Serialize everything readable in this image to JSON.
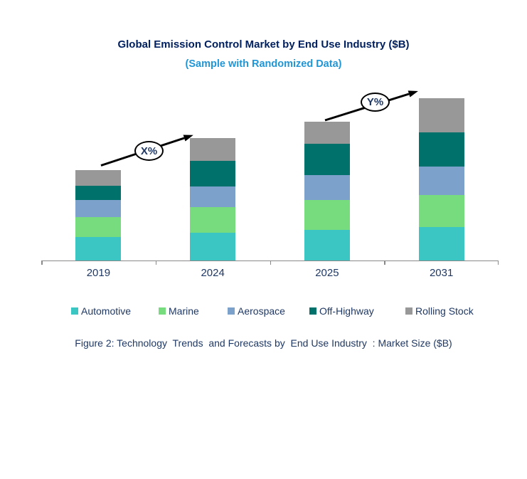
{
  "title": "Global Emission Control Market by End Use Industry ($B)",
  "subtitle": "(Sample with Randomized Data)",
  "caption": "Figure 2: Technology  Trends  and Forecasts by  End Use Industry  : Market Size ($B)",
  "colors": {
    "title_navy": "#002060",
    "text_navy": "#1F3864",
    "subtitle_blue": "#2196D6",
    "axis_gray": "#898989",
    "arrow_black": "#000000",
    "automotive": "#3BC5C3",
    "marine": "#77DC7D",
    "aerospace": "#7CA1CB",
    "off_highway": "#00716B",
    "rolling_stock": "#989898"
  },
  "chart_data": {
    "type": "bar",
    "stacked": true,
    "categories": [
      "2019",
      "2024",
      "2025",
      "2031"
    ],
    "series": [
      {
        "name": "Automotive",
        "color": "#3BC5C3",
        "values": [
          33,
          39,
          43,
          47
        ]
      },
      {
        "name": "Marine",
        "color": "#77DC7D",
        "values": [
          28,
          36,
          42,
          45
        ]
      },
      {
        "name": "Aerospace",
        "color": "#7CA1CB",
        "values": [
          24,
          29,
          35,
          40
        ]
      },
      {
        "name": "Off-Highway",
        "color": "#00716B",
        "values": [
          20,
          36,
          44,
          48
        ]
      },
      {
        "name": "Rolling Stock",
        "color": "#989898",
        "values": [
          22,
          32,
          31,
          48
        ]
      }
    ],
    "totals": [
      127,
      172,
      195,
      228
    ],
    "xlabel": "",
    "ylabel": "",
    "ylim": [
      0,
      250
    ],
    "grid": false,
    "y_axis_visible": false,
    "legend_position": "bottom",
    "annotations": [
      {
        "label": "X%",
        "from_category": "2019",
        "to_category": "2024"
      },
      {
        "label": "Y%",
        "from_category": "2025",
        "to_category": "2031"
      }
    ]
  }
}
